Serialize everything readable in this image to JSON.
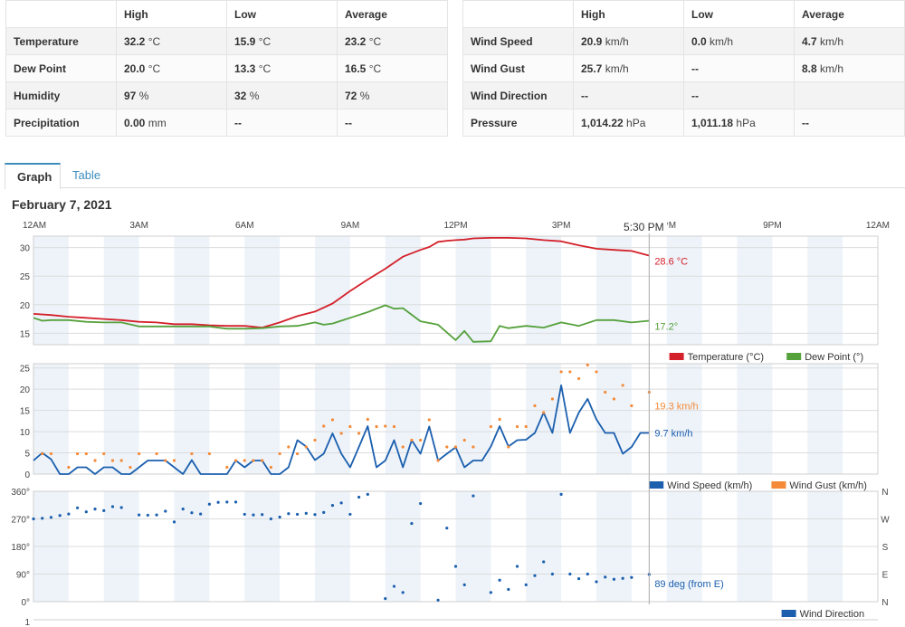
{
  "summary_left": {
    "headers": [
      "",
      "High",
      "Low",
      "Average"
    ],
    "rows": [
      {
        "label": "Temperature",
        "high": "32.2",
        "high_unit": "°C",
        "low": "15.9",
        "low_unit": "°C",
        "avg": "23.2",
        "avg_unit": "°C"
      },
      {
        "label": "Dew Point",
        "high": "20.0",
        "high_unit": "°C",
        "low": "13.3",
        "low_unit": "°C",
        "avg": "16.5",
        "avg_unit": "°C"
      },
      {
        "label": "Humidity",
        "high": "97",
        "high_unit": "%",
        "low": "32",
        "low_unit": "%",
        "avg": "72",
        "avg_unit": "%"
      },
      {
        "label": "Precipitation",
        "high": "0.00",
        "high_unit": "mm",
        "low": "--",
        "low_unit": "",
        "avg": "--",
        "avg_unit": ""
      }
    ]
  },
  "summary_right": {
    "headers": [
      "",
      "High",
      "Low",
      "Average"
    ],
    "rows": [
      {
        "label": "Wind Speed",
        "high": "20.9",
        "high_unit": "km/h",
        "low": "0.0",
        "low_unit": "km/h",
        "avg": "4.7",
        "avg_unit": "km/h"
      },
      {
        "label": "Wind Gust",
        "high": "25.7",
        "high_unit": "km/h",
        "low": "--",
        "low_unit": "",
        "avg": "8.8",
        "avg_unit": "km/h"
      },
      {
        "label": "Wind Direction",
        "high": "--",
        "high_unit": "",
        "low": "--",
        "low_unit": "",
        "avg": "",
        "avg_unit": ""
      },
      {
        "label": "Pressure",
        "high": "1,014.22",
        "high_unit": "hPa",
        "low": "1,011.18",
        "low_unit": "hPa",
        "avg": "--",
        "avg_unit": ""
      }
    ]
  },
  "tabs": [
    {
      "label": "Graph",
      "active": true
    },
    {
      "label": "Table",
      "active": false
    }
  ],
  "date_title": "February 7, 2021",
  "chart_data": {
    "type": "line",
    "x_ticks": [
      "12AM",
      "3AM",
      "6AM",
      "9AM",
      "12PM",
      "3PM",
      "6PM",
      "9PM",
      "12AM"
    ],
    "x_domain_hours": [
      0,
      24
    ],
    "cursor_label": "5:30 PM",
    "cursor_hour": 17.5,
    "panels": [
      {
        "ylim": [
          13,
          32
        ],
        "yticks": [
          15,
          20,
          25,
          30
        ],
        "series": [
          {
            "name": "Temperature (°C)",
            "color": "#d4202a",
            "style": "line",
            "last_label": "28.6 °C",
            "x": [
              0,
              0.5,
              1,
              1.5,
              2,
              2.5,
              3,
              3.5,
              4,
              4.5,
              5,
              5.5,
              6,
              6.5,
              7,
              7.5,
              8,
              8.5,
              9,
              9.5,
              10,
              10.5,
              11,
              11.25,
              11.5,
              11.75,
              12,
              12.25,
              12.5,
              13,
              13.5,
              14,
              14.5,
              15,
              15.5,
              16,
              16.5,
              17,
              17.5
            ],
            "y": [
              18.4,
              18.2,
              17.9,
              17.7,
              17.5,
              17.3,
              17.0,
              16.9,
              16.6,
              16.6,
              16.4,
              16.3,
              16.3,
              16.0,
              16.9,
              18.0,
              18.8,
              20.2,
              22.4,
              24.4,
              26.3,
              28.4,
              29.6,
              30.1,
              31.0,
              31.2,
              31.3,
              31.4,
              31.6,
              31.7,
              31.7,
              31.6,
              31.3,
              31.1,
              30.4,
              29.8,
              29.6,
              29.4,
              28.6
            ]
          },
          {
            "name": "Dew Point (°)",
            "color": "#55a13c",
            "style": "line",
            "last_label": "17.2°",
            "x": [
              0,
              0.25,
              0.5,
              1,
              1.5,
              2,
              2.5,
              3,
              3.5,
              4,
              4.5,
              5,
              5.5,
              6,
              6.5,
              7,
              7.5,
              8,
              8.25,
              8.5,
              9,
              9.5,
              10,
              10.25,
              10.5,
              11,
              11.5,
              12,
              12.25,
              12.5,
              13,
              13.25,
              13.5,
              14,
              14.5,
              15,
              15.5,
              16,
              16.5,
              17,
              17.5
            ],
            "y": [
              17.7,
              17.2,
              17.3,
              17.3,
              17.0,
              16.9,
              16.9,
              16.2,
              16.2,
              16.2,
              16.2,
              16.2,
              15.8,
              15.8,
              15.9,
              16.2,
              16.3,
              16.9,
              16.5,
              16.7,
              17.7,
              18.7,
              19.9,
              19.3,
              19.4,
              17.1,
              16.5,
              13.8,
              15.4,
              13.5,
              13.6,
              16.3,
              15.9,
              16.3,
              16.0,
              16.9,
              16.3,
              17.3,
              17.3,
              16.9,
              17.2
            ]
          }
        ]
      },
      {
        "ylim": [
          0,
          26
        ],
        "yticks": [
          0,
          5,
          10,
          15,
          20,
          25
        ],
        "series": [
          {
            "name": "Wind Speed (km/h)",
            "color": "#1b5fae",
            "style": "line",
            "last_label": "9.7 km/h",
            "x": [
              0,
              0.25,
              0.5,
              0.75,
              1,
              1.25,
              1.5,
              1.75,
              2,
              2.25,
              2.5,
              2.75,
              3,
              3.25,
              3.5,
              3.75,
              4,
              4.25,
              4.5,
              4.75,
              5,
              5.25,
              5.5,
              5.75,
              6,
              6.25,
              6.5,
              6.75,
              7,
              7.25,
              7.5,
              7.75,
              8,
              8.25,
              8.5,
              8.75,
              9,
              9.25,
              9.5,
              9.75,
              10,
              10.25,
              10.5,
              10.75,
              11,
              11.25,
              11.5,
              11.75,
              12,
              12.25,
              12.5,
              12.75,
              13,
              13.25,
              13.5,
              13.75,
              14,
              14.25,
              14.5,
              14.75,
              15,
              15.25,
              15.5,
              15.75,
              16,
              16.25,
              16.5,
              16.75,
              17,
              17.25,
              17.5
            ],
            "y": [
              3.2,
              5.0,
              3.5,
              0,
              0,
              1.6,
              1.6,
              0,
              1.6,
              1.6,
              0,
              0,
              1.6,
              3.2,
              3.2,
              3.2,
              1.6,
              0,
              3.3,
              0,
              0,
              0,
              0,
              3.2,
              1.6,
              3.2,
              3.2,
              0,
              0,
              1.6,
              8.0,
              6.5,
              3.3,
              4.8,
              9.6,
              4.8,
              1.6,
              6.4,
              11.3,
              1.6,
              3.2,
              8.0,
              1.6,
              8.0,
              4.8,
              11.2,
              3.2,
              4.8,
              6.3,
              1.6,
              3.2,
              3.2,
              6.5,
              11.3,
              6.5,
              8.0,
              8.1,
              9.7,
              14.5,
              9.7,
              20.9,
              9.7,
              14.5,
              17.7,
              12.9,
              9.7,
              9.7,
              4.8,
              6.4,
              9.7,
              9.7
            ]
          },
          {
            "name": "Wind Gust (km/h)",
            "color": "#f58a38",
            "style": "dots",
            "last_label": "19.3 km/h",
            "x": [
              0.25,
              0.5,
              1,
              1.25,
              1.5,
              1.75,
              2,
              2.25,
              2.5,
              2.75,
              3,
              3.5,
              3.75,
              4,
              4.5,
              5,
              5.5,
              5.75,
              6,
              6.25,
              6.5,
              6.75,
              7,
              7.25,
              7.5,
              7.75,
              8,
              8.25,
              8.5,
              8.75,
              9,
              9.25,
              9.5,
              9.75,
              10,
              10.25,
              10.5,
              10.75,
              11,
              11.25,
              11.5,
              11.75,
              12,
              12.25,
              12.5,
              13,
              13.25,
              13.5,
              13.75,
              14,
              14.25,
              14.5,
              14.75,
              15,
              15.25,
              15.5,
              15.75,
              16,
              16.25,
              16.5,
              16.75,
              17,
              17.5
            ],
            "y": [
              4.8,
              4.8,
              1.6,
              4.8,
              4.8,
              3.2,
              4.8,
              3.2,
              3.2,
              1.6,
              4.8,
              4.8,
              3.2,
              3.2,
              4.8,
              4.8,
              1.6,
              3.2,
              3.2,
              3.2,
              3.2,
              1.6,
              4.8,
              6.4,
              4.8,
              6.4,
              8.0,
              11.3,
              12.8,
              9.6,
              11.2,
              9.6,
              12.9,
              11.2,
              11.3,
              11.2,
              6.4,
              8.0,
              8.0,
              12.8,
              3.2,
              6.4,
              6.4,
              8.0,
              6.4,
              11.2,
              12.9,
              6.4,
              11.2,
              11.2,
              16.1,
              14.5,
              17.7,
              24.1,
              24.1,
              22.5,
              25.7,
              24.1,
              19.3,
              17.7,
              20.9,
              16.1,
              19.3
            ]
          }
        ]
      },
      {
        "ylim": [
          0,
          360
        ],
        "ytick_values": [
          0,
          90,
          180,
          270,
          360
        ],
        "ytick_labels": [
          "0°",
          "90°",
          "180°",
          "270°",
          "360°"
        ],
        "right_labels": [
          "N",
          "E",
          "S",
          "W",
          "N"
        ],
        "series": [
          {
            "name": "Wind Direction",
            "color": "#1b5fae",
            "style": "dots",
            "last_label": "89 deg (from E)",
            "x": [
              0,
              0.25,
              0.5,
              0.75,
              1,
              1.25,
              1.5,
              1.75,
              2,
              2.25,
              2.5,
              3,
              3.25,
              3.5,
              3.75,
              4,
              4.25,
              4.5,
              4.75,
              5,
              5.25,
              5.5,
              5.75,
              6,
              6.25,
              6.5,
              6.75,
              7,
              7.25,
              7.5,
              7.75,
              8,
              8.25,
              8.5,
              8.75,
              9,
              9.25,
              9.5,
              10,
              10.25,
              10.5,
              10.75,
              11,
              11.5,
              11.75,
              12,
              12.25,
              12.5,
              13,
              13.25,
              13.5,
              13.75,
              14,
              14.25,
              14.5,
              14.75,
              15,
              15.25,
              15.5,
              15.75,
              16,
              16.25,
              16.5,
              16.75,
              17,
              17.5
            ],
            "y": [
              270,
              272,
              275,
              281,
              286,
              306,
              293,
              302,
              297,
              310,
              307,
              283,
              282,
              283,
              295,
              260,
              302,
              290,
              286,
              318,
              324,
              325,
              325,
              285,
              283,
              284,
              270,
              276,
              287,
              285,
              288,
              284,
              291,
              314,
              322,
              285,
              341,
              350,
              10,
              50,
              30,
              255,
              320,
              5,
              240,
              115,
              55,
              345,
              30,
              70,
              40,
              115,
              55,
              85,
              130,
              90,
              350,
              90,
              75,
              90,
              65,
              80,
              73,
              76,
              79,
              89
            ]
          }
        ]
      }
    ]
  }
}
